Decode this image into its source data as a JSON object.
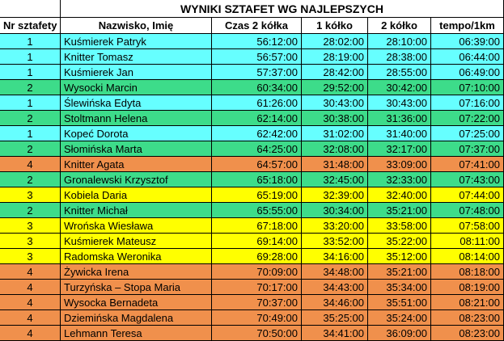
{
  "title": "WYNIKI SZTAFET WG NAJLEPSZYCH",
  "table": {
    "header": [
      "Nr sztafety",
      "Nazwisko, Imię",
      "Czas 2 kółka",
      "1 kółko",
      "2 kółko",
      "tempo/1km"
    ],
    "group_colors": {
      "1": "#66ffff",
      "2": "#3ddc8a",
      "3": "#ffff00",
      "4": "#f0904c"
    },
    "rows": [
      [
        "1",
        "Kuśmierek Patryk",
        "56:12:00",
        "28:02:00",
        "28:10:00",
        "06:39:00"
      ],
      [
        "1",
        "Knitter Tomasz",
        "56:57:00",
        "28:19:00",
        "28:38:00",
        "06:44:00"
      ],
      [
        "1",
        "Kuśmierek Jan",
        "57:37:00",
        "28:42:00",
        "28:55:00",
        "06:49:00"
      ],
      [
        "2",
        "Wysocki Marcin",
        "60:34:00",
        "29:52:00",
        "30:42:00",
        "07:10:00"
      ],
      [
        "1",
        "Ślewińska Edyta",
        "61:26:00",
        "30:43:00",
        "30:43:00",
        "07:16:00"
      ],
      [
        "2",
        "Stoltmann Helena",
        "62:14:00",
        "30:38:00",
        "31:36:00",
        "07:22:00"
      ],
      [
        "1",
        "Kopeć Dorota",
        "62:42:00",
        "31:02:00",
        "31:40:00",
        "07:25:00"
      ],
      [
        "2",
        "Słomińska Marta",
        "64:25:00",
        "32:08:00",
        "32:17:00",
        "07:37:00"
      ],
      [
        "4",
        "Knitter Agata",
        "64:57:00",
        "31:48:00",
        "33:09:00",
        "07:41:00"
      ],
      [
        "2",
        "Gronalewski Krzysztof",
        "65:18:00",
        "32:45:00",
        "32:33:00",
        "07:43:00"
      ],
      [
        "3",
        "Kobiela Daria",
        "65:19:00",
        "32:39:00",
        "32:40:00",
        "07:44:00"
      ],
      [
        "2",
        "Knitter Michał",
        "65:55:00",
        "30:34:00",
        "35:21:00",
        "07:48:00"
      ],
      [
        "3",
        "Wrońska Wiesława",
        "67:18:00",
        "33:20:00",
        "33:58:00",
        "07:58:00"
      ],
      [
        "3",
        "Kuśmierek Mateusz",
        "69:14:00",
        "33:52:00",
        "35:22:00",
        "08:11:00"
      ],
      [
        "3",
        "Radomska Weronika",
        "69:28:00",
        "34:16:00",
        "35:12:00",
        "08:14:00"
      ],
      [
        "4",
        "Żywicka Irena",
        "70:09:00",
        "34:48:00",
        "35:21:00",
        "08:18:00"
      ],
      [
        "4",
        "Turzyńska – Stopa Maria",
        "70:17:00",
        "34:43:00",
        "35:34:00",
        "08:19:00"
      ],
      [
        "4",
        "Wysocka Bernadeta",
        "70:37:00",
        "34:46:00",
        "35:51:00",
        "08:21:00"
      ],
      [
        "4",
        "Dziemińska Magdalena",
        "70:49:00",
        "35:25:00",
        "35:24:00",
        "08:23:00"
      ],
      [
        "4",
        "Lehmann Teresa",
        "70:50:00",
        "34:41:00",
        "36:09:00",
        "08:23:00"
      ]
    ]
  }
}
